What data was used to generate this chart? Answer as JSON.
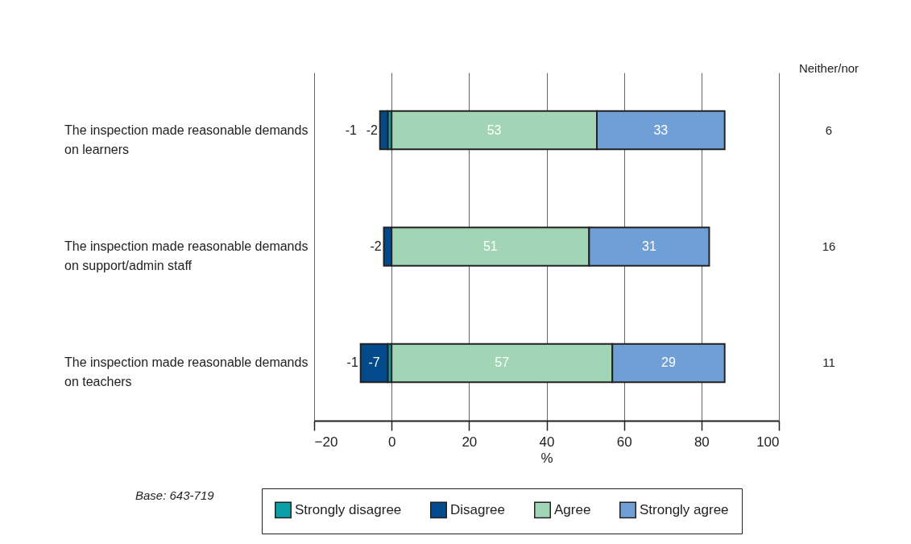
{
  "chart_data": {
    "type": "bar",
    "orientation": "horizontal",
    "stacked": true,
    "categories": [
      "The inspection made reasonable demands on learners",
      "The inspection made reasonable demands on support/admin staff",
      "The inspection made reasonable demands on teachers"
    ],
    "series": [
      {
        "name": "Strongly disagree",
        "color": "#0aa0a8",
        "values": [
          -1,
          null,
          -1
        ]
      },
      {
        "name": "Disagree",
        "color": "#034a8c",
        "values": [
          -2,
          -2,
          -7
        ]
      },
      {
        "name": "Agree",
        "color": "#a2d5b5",
        "values": [
          53,
          51,
          57
        ]
      },
      {
        "name": "Strongly agree",
        "color": "#709fd6",
        "values": [
          33,
          31,
          29
        ]
      }
    ],
    "xlim": [
      -20,
      100
    ],
    "xticks": [
      -20,
      0,
      20,
      40,
      60,
      80,
      100
    ],
    "xlabel": "%",
    "grid": "x",
    "legend": "bottom",
    "data_labels": true,
    "annotations": [
      "Neither/nor",
      "6",
      "16",
      "11",
      "Base: 643-719"
    ]
  }
}
